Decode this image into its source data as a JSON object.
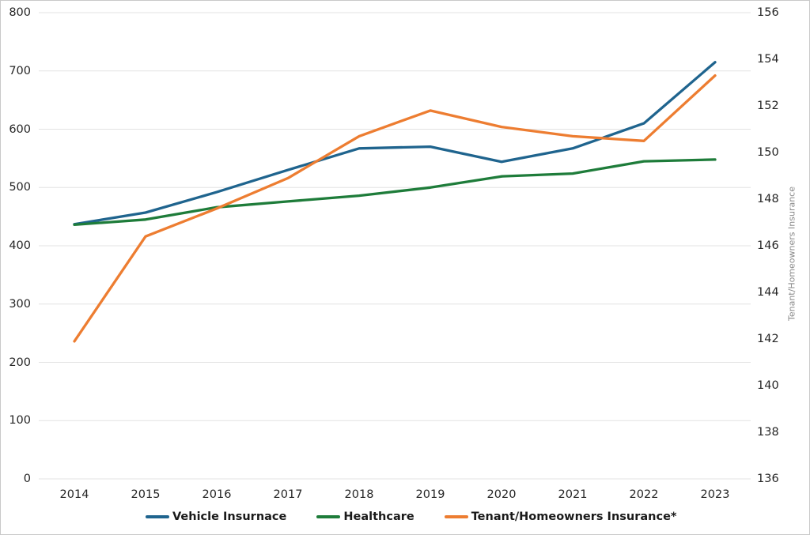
{
  "chart_data": {
    "type": "line",
    "x": [
      2014,
      2015,
      2016,
      2017,
      2018,
      2019,
      2020,
      2021,
      2022,
      2023
    ],
    "series": [
      {
        "name": "Vehicle Insurnace",
        "axis": "left",
        "color": "#1f648e",
        "values": [
          437,
          457,
          492,
          530,
          567,
          570,
          544,
          567,
          610,
          715
        ]
      },
      {
        "name": "Healthcare",
        "axis": "left",
        "color": "#1e7c3a",
        "values": [
          436,
          445,
          466,
          476,
          486,
          500,
          519,
          524,
          545,
          548
        ]
      },
      {
        "name": "Tenant/Homeowners Insurance*",
        "axis": "right",
        "color": "#ed7d31",
        "values": [
          141.9,
          146.4,
          147.6,
          148.9,
          150.7,
          151.8,
          151.1,
          150.7,
          150.5,
          153.3
        ]
      }
    ],
    "left_axis": {
      "min": 0,
      "max": 800,
      "step": 100,
      "tick_labels": [
        "800",
        "700",
        "600",
        "500",
        "400",
        "300",
        "200",
        "100",
        "0"
      ]
    },
    "right_axis": {
      "min": 136,
      "max": 156,
      "step": 2,
      "title": "Tenant/Homeowners Insurance",
      "tick_labels": [
        "156",
        "154",
        "152",
        "150",
        "148",
        "146",
        "144",
        "142",
        "140",
        "138",
        "136"
      ]
    },
    "x_axis": {
      "tick_labels": [
        "2014",
        "2015",
        "2016",
        "2017",
        "2018",
        "2019",
        "2020",
        "2021",
        "2022",
        "2023"
      ]
    },
    "grid": true,
    "grid_color": "#e3e3e3",
    "legend_position": "bottom",
    "title": "",
    "background": "#ffffff"
  }
}
